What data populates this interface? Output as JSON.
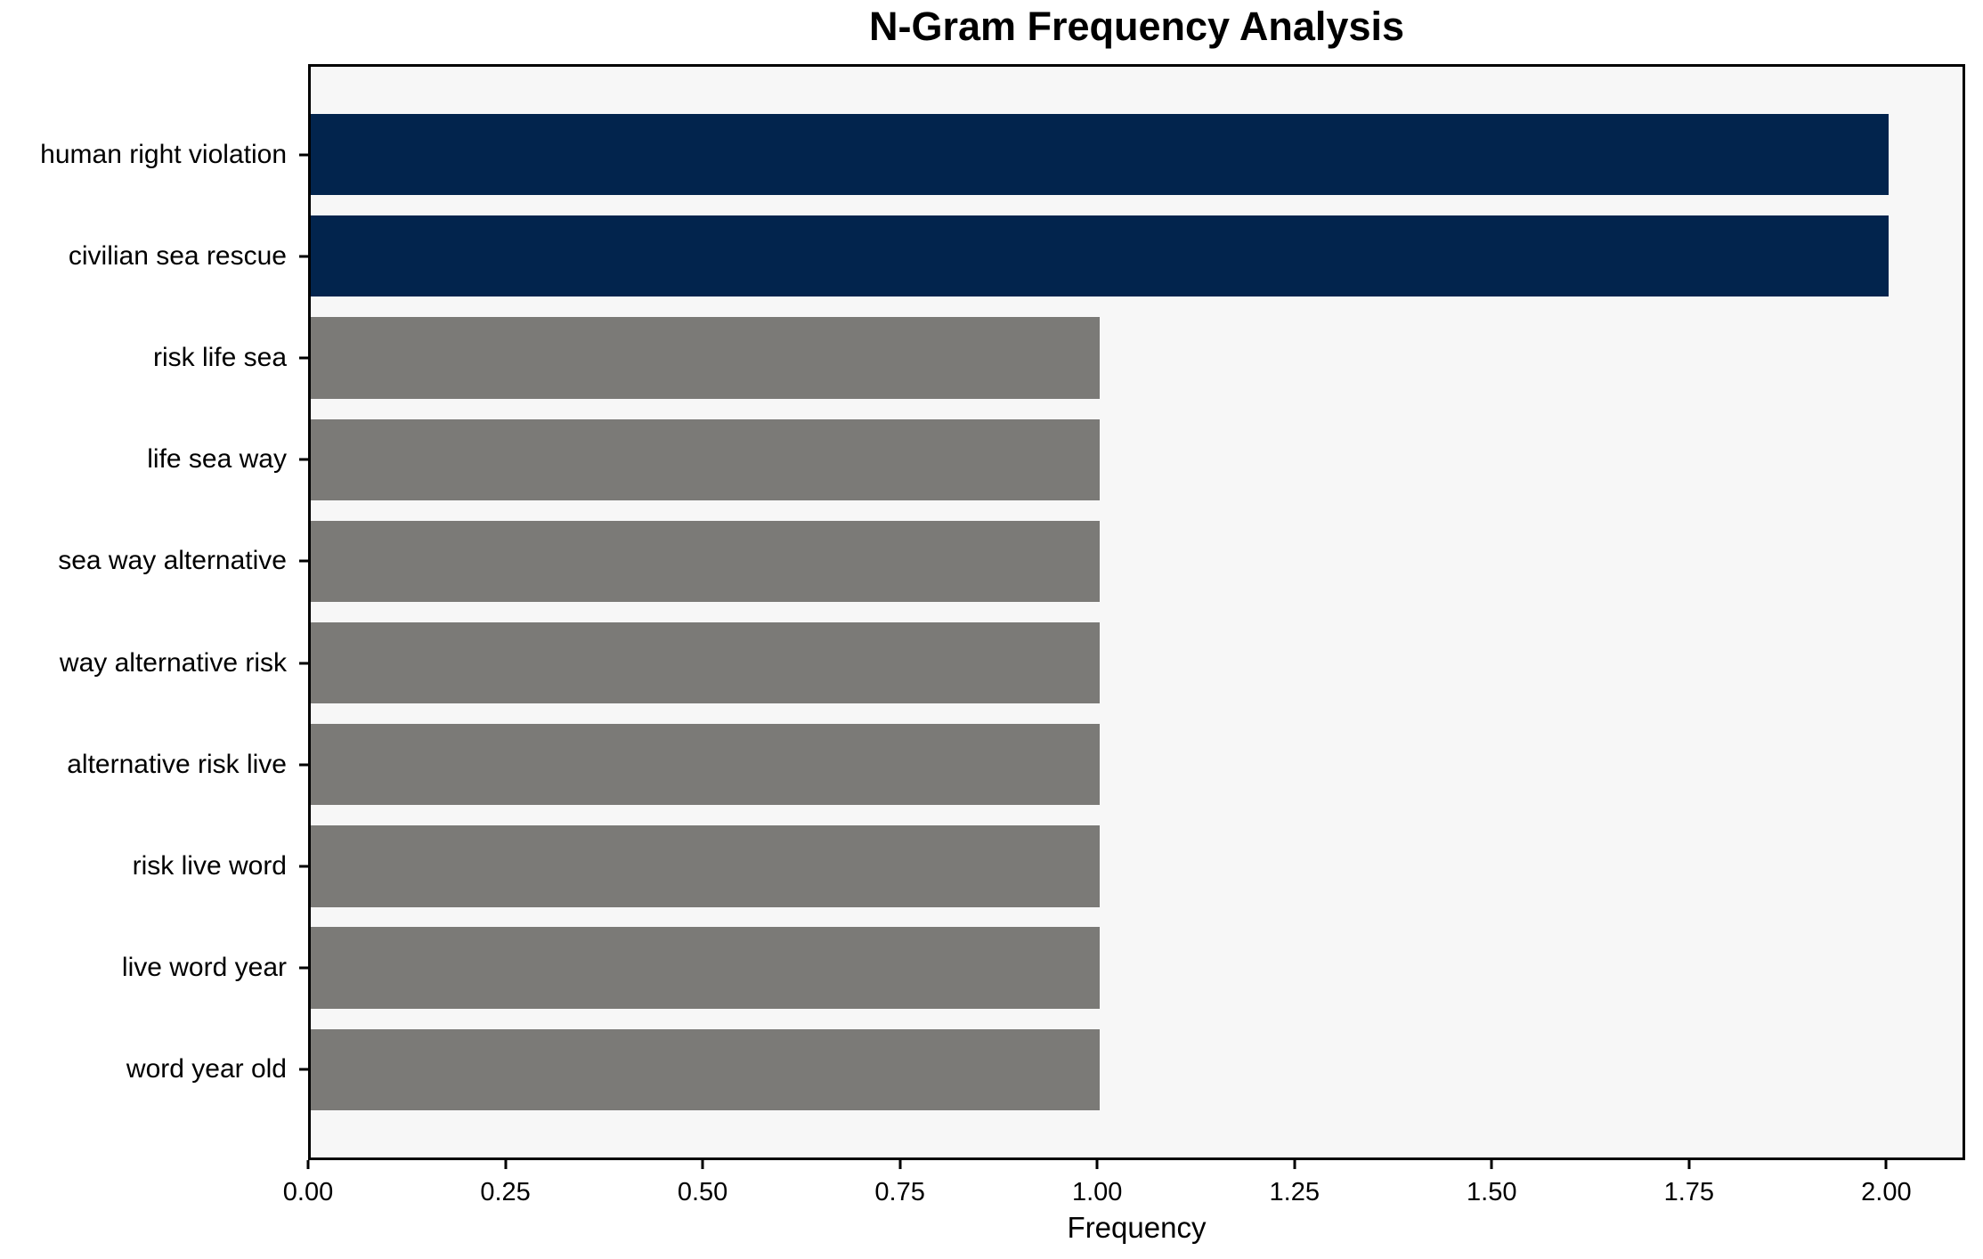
{
  "chart_data": {
    "type": "bar",
    "orientation": "horizontal",
    "title": "N-Gram Frequency Analysis",
    "xlabel": "Frequency",
    "ylabel": "",
    "categories": [
      "human right violation",
      "civilian sea rescue",
      "risk life sea",
      "life sea way",
      "sea way alternative",
      "way alternative risk",
      "alternative risk live",
      "risk live word",
      "live word year",
      "word year old"
    ],
    "values": [
      2,
      2,
      1,
      1,
      1,
      1,
      1,
      1,
      1,
      1
    ],
    "bar_colors": [
      "#02244d",
      "#02244d",
      "#7b7a77",
      "#7b7a77",
      "#7b7a77",
      "#7b7a77",
      "#7b7a77",
      "#7b7a77",
      "#7b7a77",
      "#7b7a77"
    ],
    "xlim": [
      0,
      2.1
    ],
    "xtick_values": [
      0,
      0.25,
      0.5,
      0.75,
      1.0,
      1.25,
      1.5,
      1.75,
      2.0
    ],
    "xtick_labels": [
      "0.00",
      "0.25",
      "0.50",
      "0.75",
      "1.00",
      "1.25",
      "1.50",
      "1.75",
      "2.00"
    ],
    "grid": false,
    "legend": "none",
    "colors": {
      "highlight": "#02244d",
      "base": "#7b7a77",
      "plot_background": "#f7f7f7",
      "figure_background": "#ffffff",
      "spine": "#000000",
      "text": "#000000"
    }
  }
}
